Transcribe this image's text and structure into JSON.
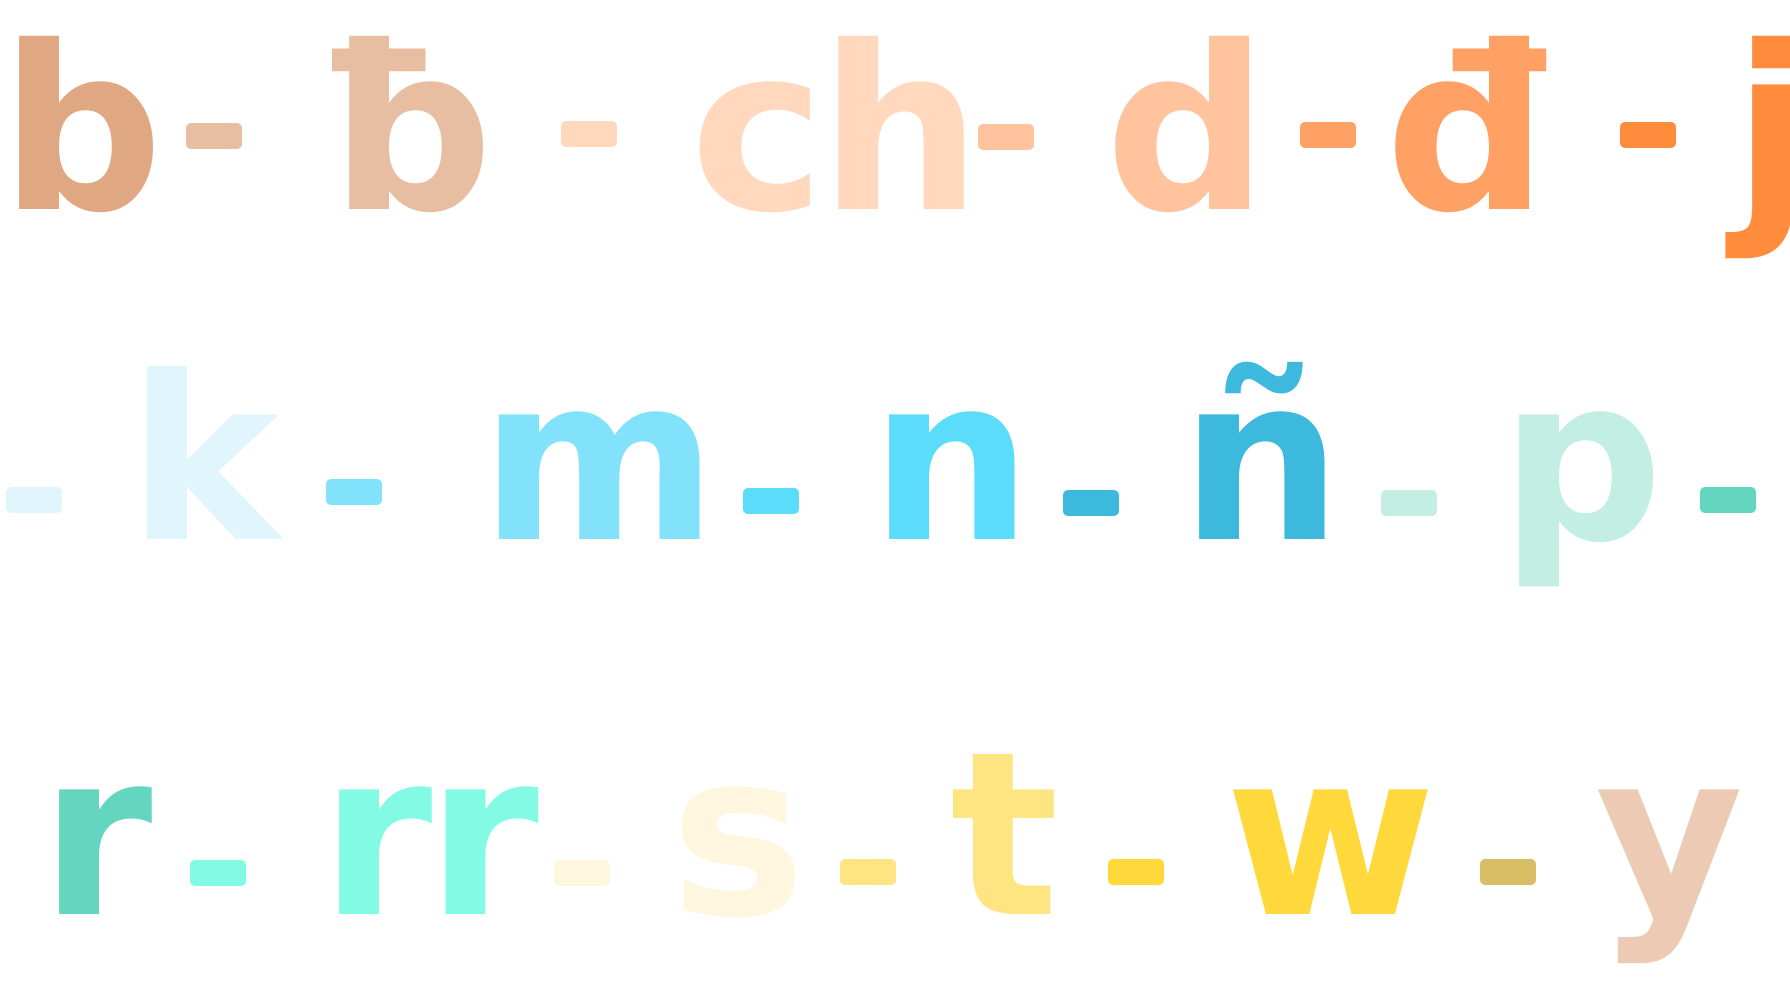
{
  "rows": [
    {
      "letters": [
        {
          "text": "b",
          "color": "#E0A882"
        },
        {
          "text": "ƀ",
          "color": "#E8BEA2"
        },
        {
          "text": "ch",
          "color": "#FFD8BE"
        },
        {
          "text": "d",
          "color": "#FFC49E"
        },
        {
          "text": "đ",
          "color": "#FFA064"
        },
        {
          "text": "j",
          "color": "#FF8C3C"
        }
      ],
      "separators": [
        {
          "color": "#E8BEA2"
        },
        {
          "color": "#FFD8BE"
        },
        {
          "color": "#FFC49E"
        },
        {
          "color": "#FFA064"
        },
        {
          "color": "#FF8C3C"
        }
      ]
    },
    {
      "letters": [
        {
          "text": "k",
          "color": "#E0F6FC"
        },
        {
          "text": "m",
          "color": "#82E2FC"
        },
        {
          "text": "n",
          "color": "#5ADCFA"
        },
        {
          "text": "ñ",
          "color": "#3CB9DC"
        },
        {
          "text": "p",
          "color": "#C2EEE4"
        }
      ],
      "separators": [
        {
          "color": "#E0F6FC"
        },
        {
          "color": "#82E2FC"
        },
        {
          "color": "#5ADCFA"
        },
        {
          "color": "#3CB9DC"
        },
        {
          "color": "#C2EEE4"
        },
        {
          "color": "#64D6C0"
        }
      ]
    },
    {
      "letters": [
        {
          "text": "r",
          "color": "#64D6C0"
        },
        {
          "text": "rr",
          "color": "#82FAE4"
        },
        {
          "text": "s",
          "color": "#FFF6E0"
        },
        {
          "text": "t",
          "color": "#FFE482"
        },
        {
          "text": "w",
          "color": "#FFD83C"
        },
        {
          "text": "y",
          "color": "#ECCAB4"
        }
      ],
      "separators": [
        {
          "color": "#82FAE4"
        },
        {
          "color": "#FFF6E0"
        },
        {
          "color": "#FFE482"
        },
        {
          "color": "#FFD83C"
        },
        {
          "color": "#D8BE64"
        }
      ]
    }
  ]
}
